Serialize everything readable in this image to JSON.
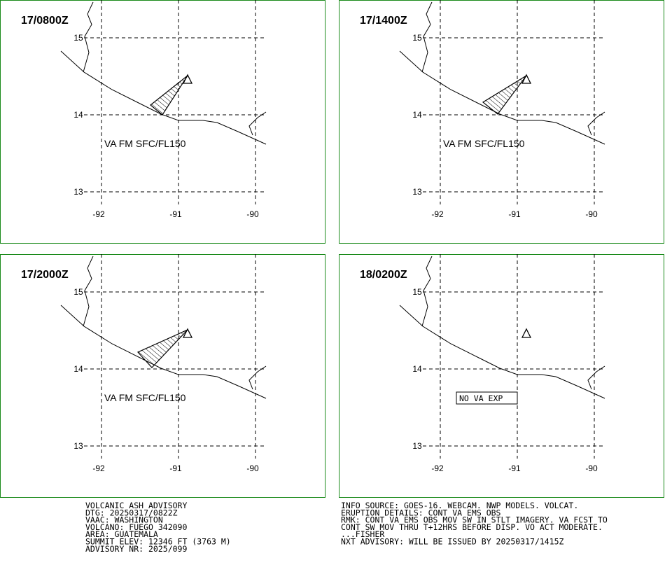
{
  "grid": {
    "lat_labels": [
      "15",
      "14",
      "13"
    ],
    "lon_labels": [
      "-92",
      "-91",
      "-90"
    ]
  },
  "panels": [
    {
      "title": "17/0800Z",
      "label": "VA FM SFC/FL150"
    },
    {
      "title": "17/1400Z",
      "label": "VA FM SFC/FL150"
    },
    {
      "title": "17/2000Z",
      "label": "VA FM SFC/FL150"
    },
    {
      "title": "18/0200Z",
      "label": "NO VA EXP"
    }
  ],
  "advisory": {
    "left": [
      "VOLCANIC ASH ADVISORY",
      "DTG: 20250317/0822Z",
      "VAAC: WASHINGTON",
      "VOLCANO: FUEGO 342090",
      "AREA: GUATEMALA",
      "SUMMIT ELEV: 12346 FT (3763 M)",
      "ADVISORY NR: 2025/099"
    ],
    "right": [
      "INFO SOURCE: GOES-16. WEBCAM. NWP MODELS. VOLCAT.",
      "ERUPTION DETAILS: CONT VA EMS OBS",
      "RMK: CONT VA EMS OBS MOV SW IN STLT IMAGERY. VA FCST TO",
      "CONT SW MOV THRU T+12HRS BEFORE DISP. VO ACT MODERATE.",
      "...FISHER",
      "NXT ADVISORY: WILL BE ISSUED BY 20250317/1415Z"
    ]
  }
}
